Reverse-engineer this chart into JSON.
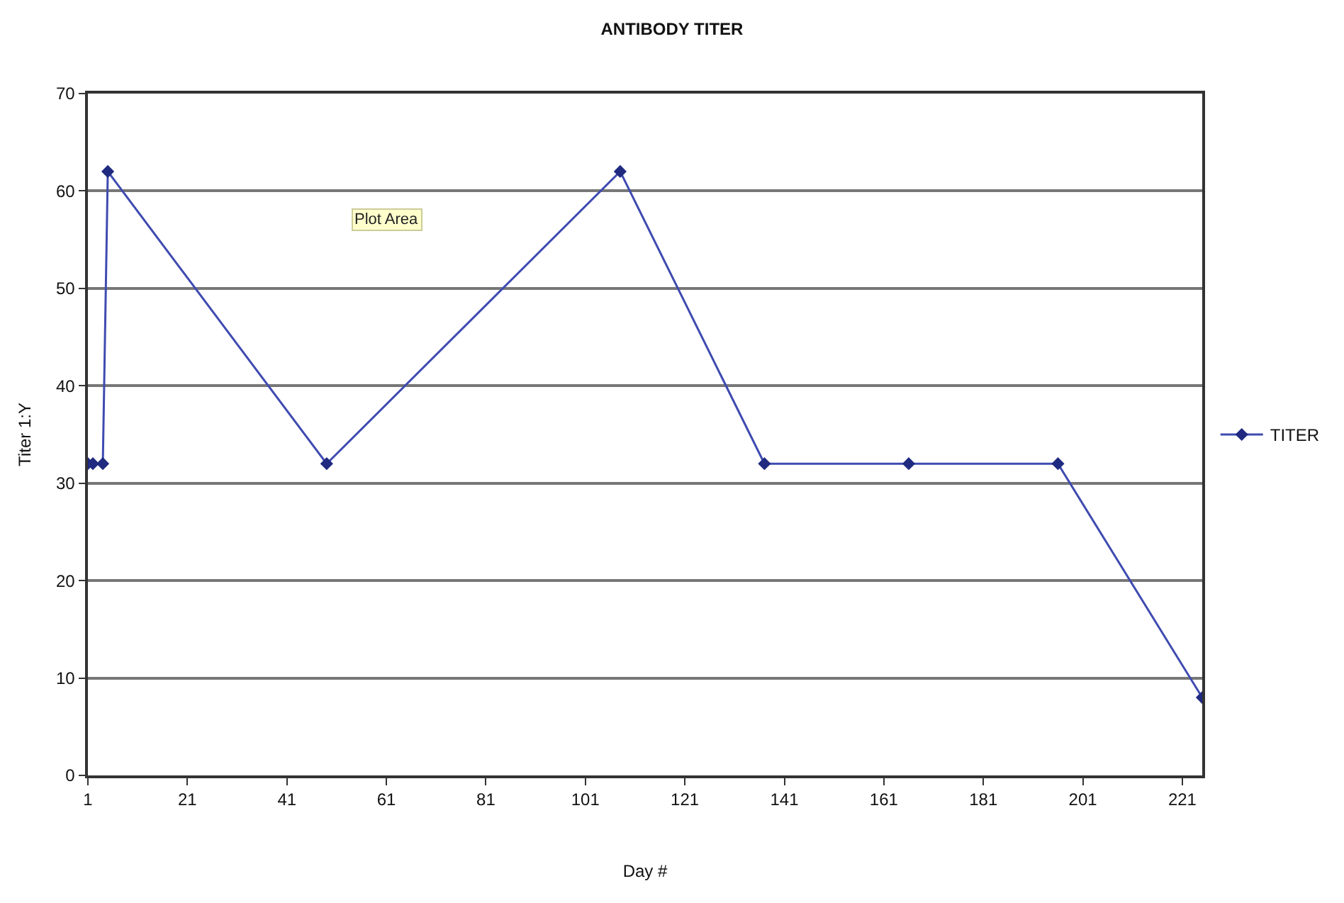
{
  "chart_data": {
    "type": "line",
    "title": "ANTIBODY TITER",
    "xlabel": "Day #",
    "ylabel": "Titer 1:Y",
    "x": [
      1,
      2,
      4,
      5,
      49,
      108,
      137,
      166,
      196,
      225
    ],
    "series": [
      {
        "name": "TITER",
        "color": "#3f4bb0",
        "values": [
          32,
          32,
          32,
          62,
          32,
          62,
          32,
          32,
          32,
          8
        ]
      }
    ],
    "xlim": [
      1,
      225
    ],
    "xticks": [
      1,
      21,
      41,
      61,
      81,
      101,
      121,
      141,
      161,
      181,
      201,
      221
    ],
    "ylim": [
      0,
      70
    ],
    "yticks": [
      0,
      10,
      20,
      30,
      40,
      50,
      60,
      70
    ],
    "grid": "y",
    "legend": "right",
    "marker": "diamond",
    "line_style": "solid",
    "annotations": [
      "Plot Area"
    ]
  }
}
